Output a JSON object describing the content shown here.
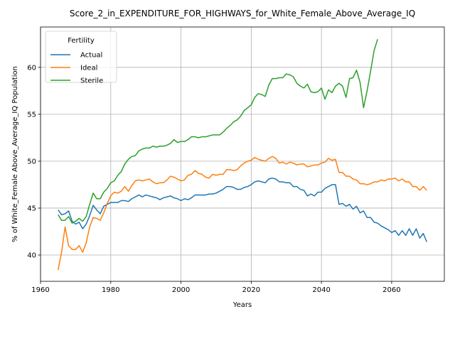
{
  "chart_data": {
    "type": "line",
    "title": "Score_2_in_EXPENDITURE_FOR_HIGHWAYS_for_White_Female_Above_Average_IQ",
    "xlabel": "Years",
    "ylabel": "% of White_Female Above_Average_IQ Population",
    "xlim": [
      1960,
      2075
    ],
    "ylim": [
      37.2,
      64.3
    ],
    "xticks": [
      1960,
      1980,
      2000,
      2020,
      2040,
      2060
    ],
    "yticks": [
      40,
      45,
      50,
      55,
      60
    ],
    "grid": true,
    "legend": {
      "title": "Fertility",
      "placement": "top-left"
    },
    "series": [
      {
        "name": "Actual",
        "color": "#1f77b4",
        "x": [
          1965,
          1966,
          1967,
          1968,
          1969,
          1970,
          1971,
          1972,
          1973,
          1974,
          1975,
          1976,
          1977,
          1978,
          1979,
          1980,
          1981,
          1982,
          1983,
          1984,
          1985,
          1986,
          1987,
          1988,
          1989,
          1990,
          1991,
          1992,
          1993,
          1994,
          1995,
          1996,
          1997,
          1998,
          1999,
          2000,
          2001,
          2002,
          2003,
          2004,
          2005,
          2006,
          2007,
          2008,
          2009,
          2010,
          2011,
          2012,
          2013,
          2014,
          2015,
          2016,
          2017,
          2018,
          2019,
          2020,
          2021,
          2022,
          2023,
          2024,
          2025,
          2026,
          2027,
          2028,
          2029,
          2030,
          2031,
          2032,
          2033,
          2034,
          2035,
          2036,
          2037,
          2038,
          2039,
          2040,
          2041,
          2042,
          2043,
          2044,
          2045,
          2046,
          2047,
          2048,
          2049,
          2050,
          2051,
          2052,
          2053,
          2054,
          2055,
          2056,
          2057,
          2058,
          2059,
          2060,
          2061,
          2062,
          2063,
          2064,
          2065,
          2066,
          2067,
          2068,
          2069,
          2070
        ],
        "values": [
          44.8,
          44.3,
          44.4,
          44.7,
          43.6,
          43.3,
          43.5,
          42.8,
          43.3,
          44.2,
          45.3,
          44.8,
          44.4,
          45.2,
          45.4,
          45.6,
          45.6,
          45.6,
          45.8,
          45.8,
          45.7,
          46.0,
          46.2,
          46.4,
          46.2,
          46.4,
          46.3,
          46.2,
          46.1,
          45.9,
          46.1,
          46.2,
          46.3,
          46.1,
          46.0,
          45.8,
          46.0,
          45.9,
          46.1,
          46.4,
          46.4,
          46.4,
          46.4,
          46.5,
          46.5,
          46.6,
          46.8,
          47.0,
          47.3,
          47.3,
          47.2,
          47.0,
          47.0,
          47.2,
          47.3,
          47.5,
          47.8,
          47.9,
          47.8,
          47.7,
          48.1,
          48.2,
          48.1,
          47.8,
          47.8,
          47.7,
          47.7,
          47.3,
          47.3,
          47.0,
          46.9,
          46.3,
          46.5,
          46.3,
          46.7,
          46.7,
          47.1,
          47.3,
          47.5,
          47.5,
          45.4,
          45.5,
          45.2,
          45.4,
          44.9,
          45.2,
          44.5,
          44.7,
          44.0,
          44.0,
          43.5,
          43.4,
          43.1,
          42.9,
          42.7,
          42.4,
          42.6,
          42.1,
          42.6,
          42.1,
          42.8,
          42.1,
          42.8,
          41.8,
          42.3,
          41.4
        ]
      },
      {
        "name": "Ideal",
        "color": "#ff7f0e",
        "x": [
          1965,
          1966,
          1967,
          1968,
          1969,
          1970,
          1971,
          1972,
          1973,
          1974,
          1975,
          1976,
          1977,
          1978,
          1979,
          1980,
          1981,
          1982,
          1983,
          1984,
          1985,
          1986,
          1987,
          1988,
          1989,
          1990,
          1991,
          1992,
          1993,
          1994,
          1995,
          1996,
          1997,
          1998,
          1999,
          2000,
          2001,
          2002,
          2003,
          2004,
          2005,
          2006,
          2007,
          2008,
          2009,
          2010,
          2011,
          2012,
          2013,
          2014,
          2015,
          2016,
          2017,
          2018,
          2019,
          2020,
          2021,
          2022,
          2023,
          2024,
          2025,
          2026,
          2027,
          2028,
          2029,
          2030,
          2031,
          2032,
          2033,
          2034,
          2035,
          2036,
          2037,
          2038,
          2039,
          2040,
          2041,
          2042,
          2043,
          2044,
          2045,
          2046,
          2047,
          2048,
          2049,
          2050,
          2051,
          2052,
          2053,
          2054,
          2055,
          2056,
          2057,
          2058,
          2059,
          2060,
          2061,
          2062,
          2063,
          2064,
          2065,
          2066,
          2067,
          2068,
          2069,
          2070
        ],
        "values": [
          38.4,
          40.3,
          43.0,
          41.0,
          40.6,
          40.6,
          41.0,
          40.3,
          41.3,
          43.0,
          44.0,
          43.9,
          43.7,
          44.5,
          45.5,
          46.3,
          46.7,
          46.6,
          46.8,
          47.3,
          46.8,
          47.4,
          47.9,
          48.0,
          47.9,
          48.0,
          48.1,
          47.8,
          47.6,
          47.7,
          47.7,
          48.0,
          48.4,
          48.3,
          48.1,
          47.9,
          48.0,
          48.5,
          48.6,
          49.0,
          48.7,
          48.6,
          48.3,
          48.2,
          48.6,
          48.5,
          48.6,
          48.6,
          49.1,
          49.1,
          49.0,
          49.1,
          49.5,
          49.8,
          50.0,
          50.1,
          50.4,
          50.2,
          50.1,
          50.0,
          50.3,
          50.5,
          50.3,
          49.8,
          49.9,
          49.7,
          49.9,
          49.8,
          49.6,
          49.7,
          49.7,
          49.4,
          49.5,
          49.6,
          49.6,
          49.8,
          49.9,
          50.3,
          50.1,
          50.2,
          48.8,
          48.8,
          48.4,
          48.4,
          48.1,
          48.0,
          47.6,
          47.6,
          47.5,
          47.6,
          47.8,
          47.8,
          48.0,
          47.9,
          48.1,
          48.1,
          48.2,
          47.9,
          48.1,
          47.8,
          47.8,
          47.3,
          47.3,
          46.9,
          47.3,
          46.9
        ]
      },
      {
        "name": "Sterile",
        "color": "#2ca02c",
        "x": [
          1965,
          1966,
          1967,
          1968,
          1969,
          1970,
          1971,
          1972,
          1973,
          1974,
          1975,
          1976,
          1977,
          1978,
          1979,
          1980,
          1981,
          1982,
          1983,
          1984,
          1985,
          1986,
          1987,
          1988,
          1989,
          1990,
          1991,
          1992,
          1993,
          1994,
          1995,
          1996,
          1997,
          1998,
          1999,
          2000,
          2001,
          2002,
          2003,
          2004,
          2005,
          2006,
          2007,
          2008,
          2009,
          2010,
          2011,
          2012,
          2013,
          2014,
          2015,
          2016,
          2017,
          2018,
          2019,
          2020,
          2021,
          2022,
          2023,
          2024,
          2025,
          2026,
          2027,
          2028,
          2029,
          2030,
          2031,
          2032,
          2033,
          2034,
          2035,
          2036,
          2037,
          2038,
          2039,
          2040,
          2041,
          2042,
          2043,
          2044,
          2045,
          2046,
          2047,
          2048,
          2049,
          2050,
          2051,
          2052,
          2053,
          2054,
          2055,
          2056
        ],
        "values": [
          44.3,
          43.7,
          43.7,
          44.1,
          43.4,
          43.6,
          43.9,
          43.6,
          44.1,
          45.4,
          46.6,
          46.0,
          46.0,
          46.7,
          47.1,
          47.7,
          47.9,
          48.5,
          48.9,
          49.7,
          50.2,
          50.5,
          50.6,
          51.1,
          51.3,
          51.4,
          51.4,
          51.6,
          51.5,
          51.6,
          51.6,
          51.7,
          51.9,
          52.3,
          52.0,
          52.1,
          52.1,
          52.3,
          52.6,
          52.6,
          52.5,
          52.6,
          52.6,
          52.7,
          52.8,
          52.8,
          52.8,
          53.1,
          53.5,
          53.8,
          54.2,
          54.4,
          54.8,
          55.4,
          55.7,
          56.0,
          56.8,
          57.2,
          57.1,
          56.9,
          58.1,
          58.8,
          58.8,
          58.9,
          58.9,
          59.3,
          59.2,
          59.0,
          58.3,
          58.0,
          57.8,
          58.2,
          57.4,
          57.3,
          57.4,
          57.8,
          56.6,
          57.6,
          57.3,
          58.0,
          58.3,
          58.0,
          56.8,
          58.8,
          58.9,
          59.7,
          58.4,
          55.7,
          57.5,
          59.6,
          61.8,
          63.0
        ]
      }
    ]
  }
}
